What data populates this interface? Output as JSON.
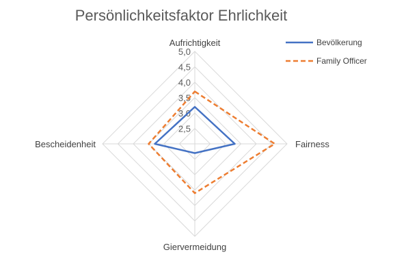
{
  "chart_data": {
    "type": "radar",
    "title": "Persönlichkeitsfaktor Ehrlichkeit",
    "axes": [
      "Aufrichtigkeit",
      "Fairness",
      "Giervermeidung",
      "Bescheidenheit"
    ],
    "rlim": [
      2.0,
      5.0
    ],
    "ticks": [
      2.5,
      3.0,
      3.5,
      4.0,
      4.5,
      5.0
    ],
    "tick_labels": [
      "2,5",
      "3,0",
      "3,5",
      "4,0",
      "4,5",
      "5,0"
    ],
    "grid": true,
    "legend_position": "top-right",
    "series": [
      {
        "name": "Bevölkerung",
        "values": [
          3.2,
          3.3,
          2.3,
          3.3
        ],
        "color": "#4472C4",
        "dash": "solid"
      },
      {
        "name": "Family Officer",
        "values": [
          3.7,
          4.6,
          3.6,
          3.5
        ],
        "color": "#ED7D31",
        "dash": "dashed"
      }
    ]
  }
}
